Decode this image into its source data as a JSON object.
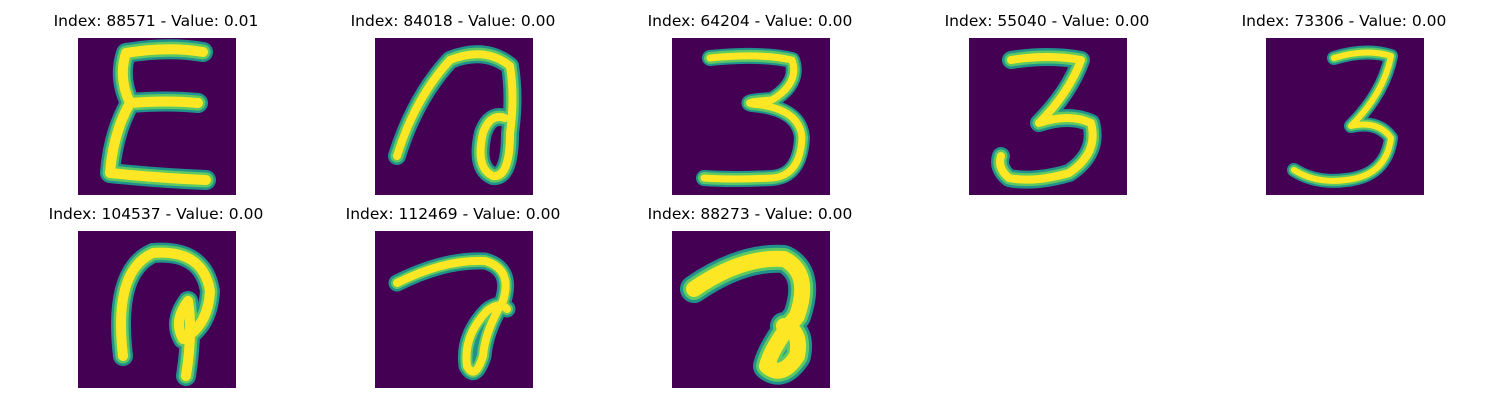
{
  "colors": {
    "background": "#440154",
    "stroke_core": "#fde725",
    "stroke_mid": "#5ec962",
    "stroke_edge": "#21918c"
  },
  "panels": [
    {
      "title": "Index: 88571 - Value: 0.01",
      "glyph": "sigma-like-e"
    },
    {
      "title": "Index: 84018 - Value: 0.00",
      "glyph": "loop-seven"
    },
    {
      "title": "Index: 64204 - Value: 0.00",
      "glyph": "three"
    },
    {
      "title": "Index: 55040 - Value: 0.00",
      "glyph": "three-hooked"
    },
    {
      "title": "Index: 73306 - Value: 0.00",
      "glyph": "three-slanted"
    },
    {
      "title": "Index: 104537 - Value: 0.00",
      "glyph": "hook-loop"
    },
    {
      "title": "Index: 112469 - Value: 0.00",
      "glyph": "seven-loop"
    },
    {
      "title": "Index: 88273 - Value: 0.00",
      "glyph": "seven-filled"
    }
  ]
}
